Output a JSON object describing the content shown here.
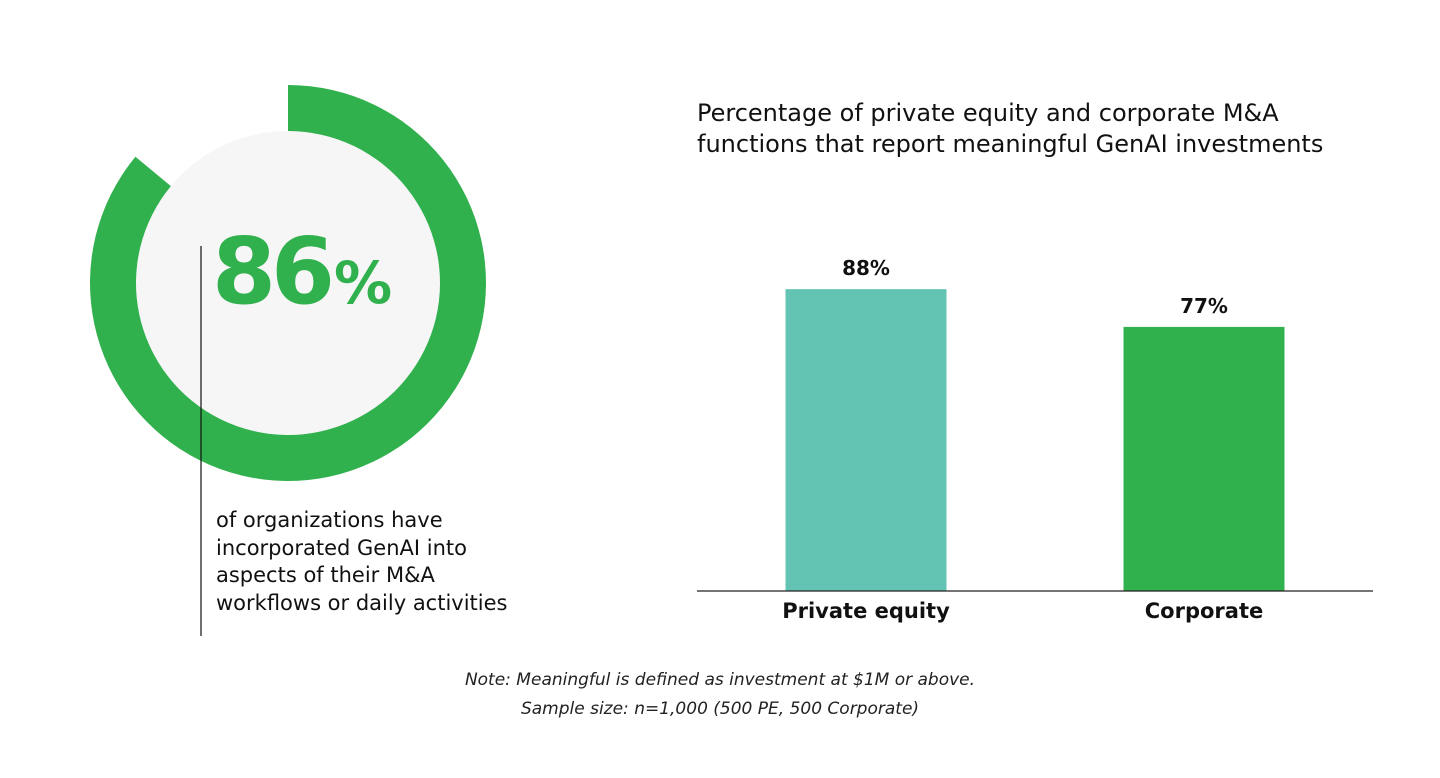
{
  "stat": {
    "value": "86",
    "unit": "%",
    "percent": 86,
    "caption_lines": [
      "of organizations have",
      "incorporated GenAI into",
      "aspects of their M&A",
      "workflows or daily activities"
    ]
  },
  "chart_data": {
    "type": "bar",
    "title": "Percentage of private equity and corporate M&A functions that report meaningful GenAI investments",
    "title_lines": [
      "Percentage of private equity and corporate M&A",
      "functions that report meaningful GenAI investments"
    ],
    "categories": [
      "Private equity",
      "Corporate"
    ],
    "values": [
      88,
      77
    ],
    "data_labels": [
      "88%",
      "77%"
    ],
    "bar_colors": [
      "#63c4b3",
      "#31b14e"
    ],
    "ylim": [
      0,
      100
    ],
    "grid": false,
    "xlabel": "",
    "ylabel": ""
  },
  "note": {
    "line1": "Note: Meaningful is defined as investment at $1M or above.",
    "line2": "Sample size: n=1,000 (500 PE, 500 Corporate)"
  },
  "colors": {
    "accent_green": "#31b14e",
    "teal": "#63c4b3",
    "donut_inner": "#f6f6f6",
    "text": "#111111"
  }
}
